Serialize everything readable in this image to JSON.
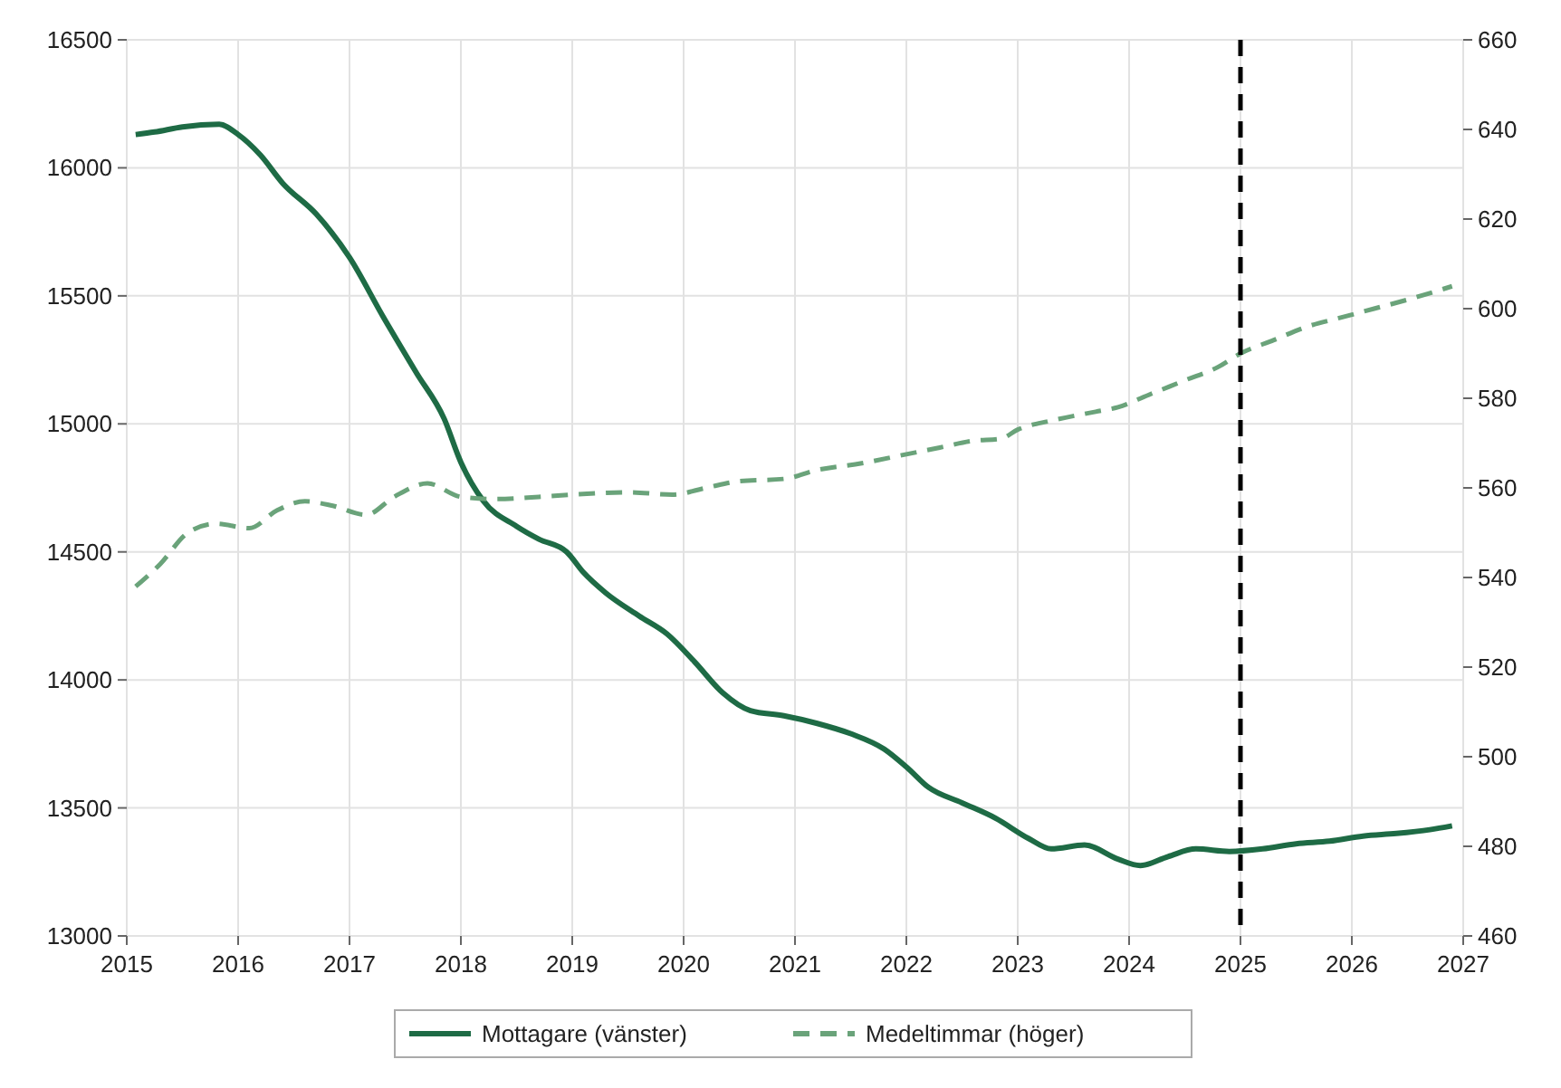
{
  "chart_data": {
    "type": "line",
    "x": [
      2015.08,
      2015.25,
      2015.5,
      2015.83,
      2016.0,
      2016.2,
      2016.4,
      2016.7,
      2017.0,
      2017.3,
      2017.6,
      2017.85,
      2018.0,
      2018.2,
      2018.5,
      2018.7,
      2018.95,
      2019.1,
      2019.3,
      2019.6,
      2019.85,
      2020.1,
      2020.35,
      2020.6,
      2020.9,
      2021.2,
      2021.5,
      2021.8,
      2022.0,
      2022.2,
      2022.5,
      2022.8,
      2023.1,
      2023.3,
      2023.6,
      2023.9,
      2024.1,
      2024.35,
      2024.6,
      2024.9,
      2025.2,
      2025.5,
      2025.8,
      2026.1,
      2026.4,
      2026.7,
      2026.9
    ],
    "series": [
      {
        "name": "Mottagare (vänster)",
        "color": "#1e6b45",
        "line_style": "solid",
        "values": [
          16130,
          16140,
          16160,
          16170,
          16130,
          16050,
          15940,
          15820,
          15650,
          15420,
          15200,
          15020,
          14850,
          14700,
          14600,
          14550,
          14500,
          14420,
          14340,
          14250,
          14180,
          14070,
          13950,
          13880,
          13860,
          13830,
          13790,
          13730,
          13660,
          13580,
          13520,
          13460,
          13380,
          13340,
          13355,
          13300,
          13275,
          13310,
          13340,
          13330,
          13340,
          13360,
          13370,
          13390,
          13400,
          13415,
          13430
        ]
      },
      {
        "name": "Medeltimmar (höger)",
        "color": "#6aa37a",
        "line_style": "dashed",
        "axis": "y2",
        "x": [
          2015.08,
          2015.3,
          2015.55,
          2015.8,
          2016.1,
          2016.35,
          2016.6,
          2016.85,
          2017.15,
          2017.4,
          2017.7,
          2018.0,
          2018.3,
          2018.7,
          2019.0,
          2019.5,
          2019.9,
          2020.2,
          2020.5,
          2020.9,
          2021.2,
          2021.6,
          2022.0,
          2022.3,
          2022.6,
          2022.85,
          2023.0,
          2023.3,
          2023.7,
          2023.9,
          2024.2,
          2024.5,
          2024.8,
          2025.0,
          2025.3,
          2025.6,
          2025.9,
          2026.2,
          2026.5,
          2026.9
        ],
        "values": [
          538,
          543,
          550,
          552,
          551,
          555,
          557,
          556,
          554,
          558,
          561,
          558,
          557.5,
          558,
          558.5,
          559,
          558.5,
          560,
          561.5,
          562,
          564,
          565.5,
          567.5,
          569,
          570.5,
          571,
          573,
          575,
          577,
          578,
          581,
          584,
          587,
          590,
          593,
          596,
          598,
          600,
          602,
          605
        ]
      }
    ],
    "xlim": [
      2015,
      2027
    ],
    "xticks": [
      2015,
      2016,
      2017,
      2018,
      2019,
      2020,
      2021,
      2022,
      2023,
      2024,
      2025,
      2026,
      2027
    ],
    "ylim": [
      13000,
      16500
    ],
    "yticks": [
      13000,
      13500,
      14000,
      14500,
      15000,
      15500,
      16000,
      16500
    ],
    "y2lim": [
      460,
      660
    ],
    "y2ticks": [
      460,
      480,
      500,
      520,
      540,
      560,
      580,
      600,
      620,
      640,
      660
    ],
    "ref_lines": [
      {
        "axis": "x",
        "value": 2025,
        "color": "#000000",
        "line_style": "dashed"
      }
    ],
    "grid": true,
    "legend": "bottom",
    "marker": "none"
  }
}
